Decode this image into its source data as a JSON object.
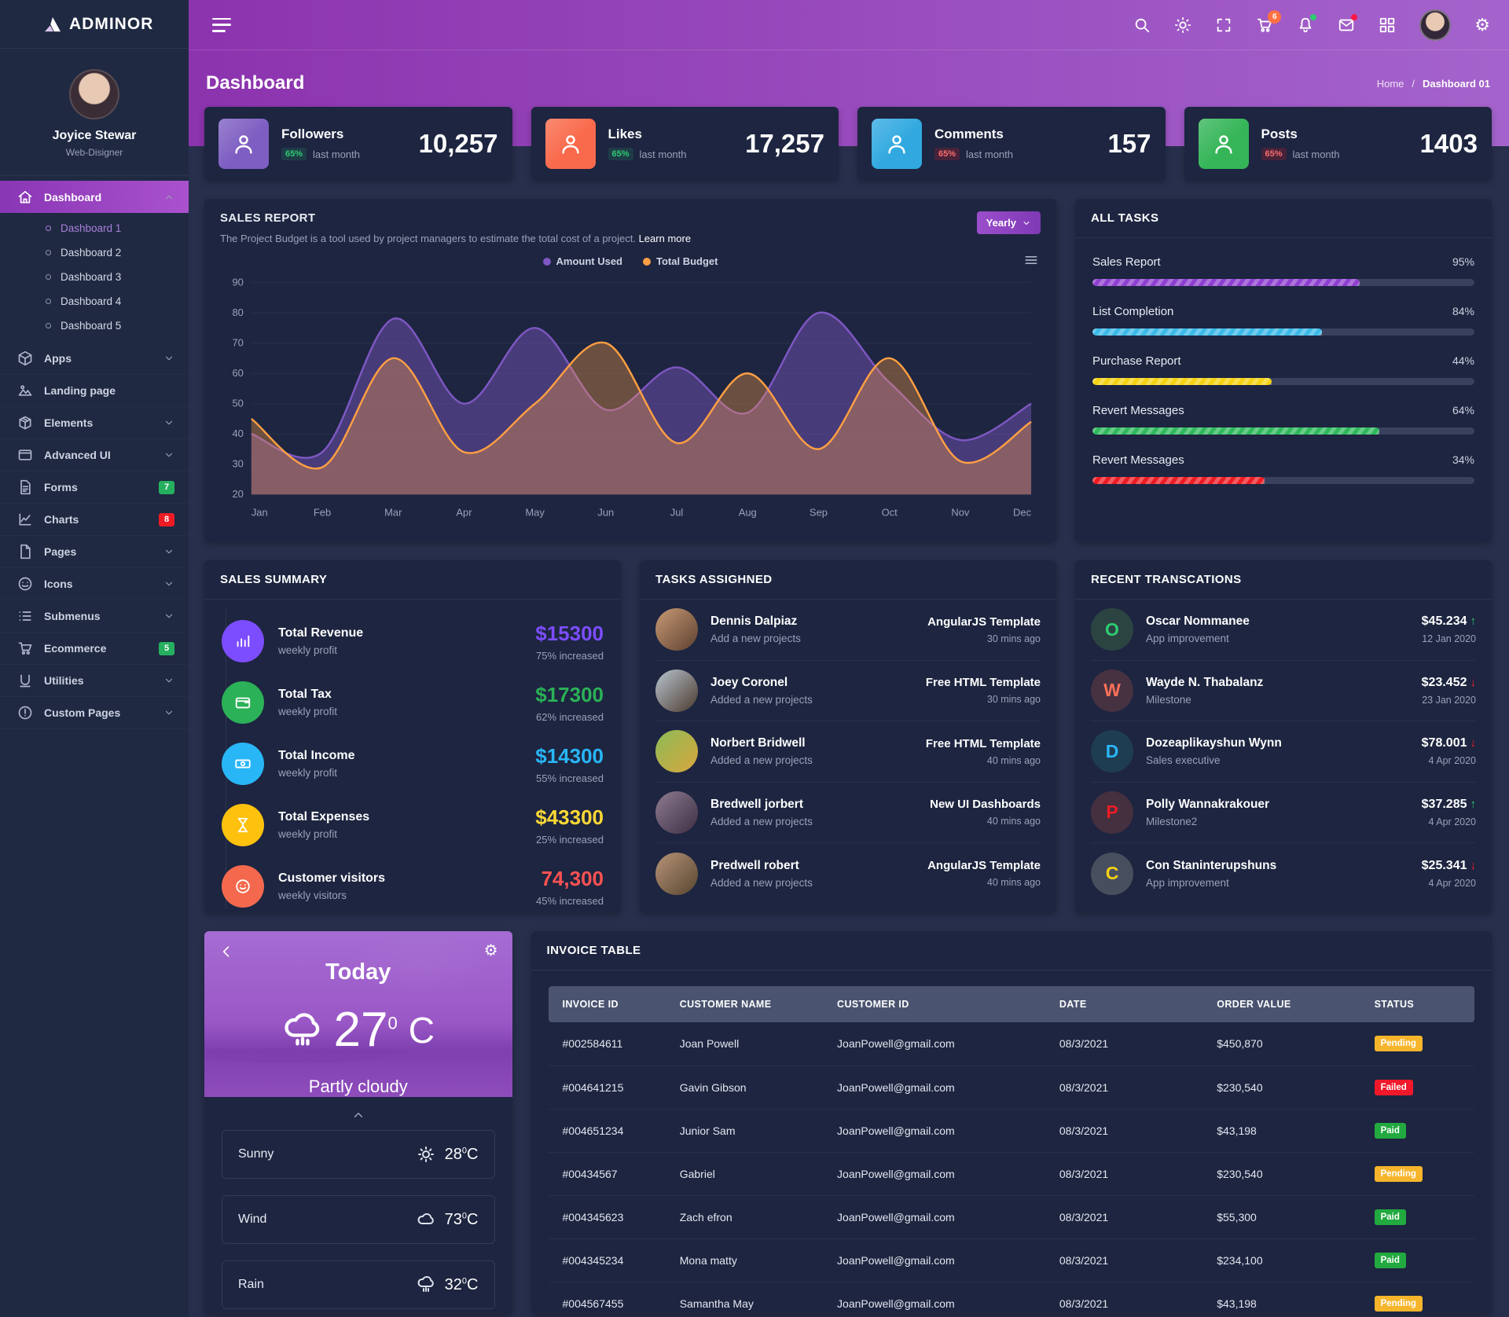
{
  "brand": {
    "name": "ADMINOR"
  },
  "topbar": {
    "icons": [
      "search-icon",
      "sun-icon",
      "fullscreen-icon",
      "cart-icon",
      "bell-icon",
      "mail-icon",
      "grid-icon",
      "user-avatar",
      "gear-icon"
    ],
    "cart_badge": "6",
    "bell_dot_color": "#2ecc71",
    "mail_dot_color": "#ff1744"
  },
  "page": {
    "title": "Dashboard"
  },
  "breadcrumb": {
    "home": "Home",
    "sep": "/",
    "current": "Dashboard 01"
  },
  "profile": {
    "name": "Joyice Stewar",
    "role": "Web-Disigner"
  },
  "sidebar": {
    "items": [
      {
        "label": "Dashboard"
      },
      {
        "label": "Apps"
      },
      {
        "label": "Landing page"
      },
      {
        "label": "Elements"
      },
      {
        "label": "Advanced UI"
      },
      {
        "label": "Forms",
        "badge": "7",
        "badge_color": "#26af5f"
      },
      {
        "label": "Charts",
        "badge": "8",
        "badge_color": "#ed1c24"
      },
      {
        "label": "Pages"
      },
      {
        "label": "Icons"
      },
      {
        "label": "Submenus"
      },
      {
        "label": "Ecommerce",
        "badge": "5",
        "badge_color": "#26af5f"
      },
      {
        "label": "Utilities"
      },
      {
        "label": "Custom Pages"
      }
    ],
    "dashboard_children": [
      {
        "label": "Dashboard 1"
      },
      {
        "label": "Dashboard 2"
      },
      {
        "label": "Dashboard 3"
      },
      {
        "label": "Dashboard 4"
      },
      {
        "label": "Dashboard 5"
      }
    ]
  },
  "stats": [
    {
      "label": "Followers",
      "percent": "65%",
      "pct_color": "#2ecc71",
      "pct_bg": "rgba(46,204,113,0.14)",
      "period": "last month",
      "value": "10,257",
      "tile_color": "#7e5ec2"
    },
    {
      "label": "Likes",
      "percent": "65%",
      "pct_color": "#2ecc71",
      "pct_bg": "rgba(46,204,113,0.14)",
      "period": "last month",
      "value": "17,257",
      "tile_color": "#f9694b"
    },
    {
      "label": "Comments",
      "percent": "65%",
      "pct_color": "#ff6b6b",
      "pct_bg": "rgba(237,28,36,0.2)",
      "period": "last month",
      "value": "157",
      "tile_color": "#31a9e0"
    },
    {
      "label": "Posts",
      "percent": "65%",
      "pct_color": "#ff6b6b",
      "pct_bg": "rgba(237,28,36,0.2)",
      "period": "last month",
      "value": "1403",
      "tile_color": "#35b558"
    }
  ],
  "sales_report": {
    "title": "SALES REPORT",
    "subtitle": "The Project Budget is a tool used by project managers to estimate the total cost of a project.",
    "link": "Learn more",
    "period": "Yearly"
  },
  "chart_data": {
    "type": "area",
    "x": [
      "Jan",
      "Feb",
      "Mar",
      "Apr",
      "May",
      "Jun",
      "Jul",
      "Aug",
      "Sep",
      "Oct",
      "Nov",
      "Dec"
    ],
    "series": [
      {
        "name": "Amount Used",
        "color": "#7e57c2",
        "values": [
          40,
          34,
          78,
          50,
          75,
          48,
          62,
          47,
          80,
          57,
          38,
          50
        ]
      },
      {
        "name": "Total Budget",
        "color": "#ff9f43",
        "values": [
          45,
          29,
          65,
          34,
          50,
          70,
          37,
          60,
          35,
          65,
          31,
          44
        ]
      }
    ],
    "ylim": [
      20,
      90
    ],
    "yticks": [
      20,
      30,
      40,
      50,
      60,
      70,
      80,
      90
    ],
    "grid": "faint-horizontal",
    "legend_position": "top-center"
  },
  "all_tasks": {
    "title": "ALL TASKS",
    "items": [
      {
        "label": "Sales Report",
        "percent": "95%",
        "color": "#8e3fd0",
        "width": "70%"
      },
      {
        "label": "List Completion",
        "percent": "84%",
        "color": "#3bb9e8",
        "width": "60%"
      },
      {
        "label": "Purchase Report",
        "percent": "44%",
        "color": "#f5d312",
        "width": "47%"
      },
      {
        "label": "Revert Messages",
        "percent": "64%",
        "color": "#2eb95c",
        "width": "75%"
      },
      {
        "label": "Revert Messages",
        "percent": "34%",
        "color": "#ed1c24",
        "width": "45%"
      }
    ]
  },
  "sales_summary": {
    "title": "SALES SUMMARY",
    "items": [
      {
        "label": "Total Revenue",
        "sub": "weekly profit",
        "value": "$15300",
        "value_color": "#7c4dff",
        "change": "75% increased",
        "icon": "bar-chart-icon",
        "circle_color": "#7c4dff"
      },
      {
        "label": "Total Tax",
        "sub": "weekly profit",
        "value": "$17300",
        "value_color": "#2bb157",
        "change": "62% increased",
        "icon": "wallet-icon",
        "circle_color": "#2bb157"
      },
      {
        "label": "Total Income",
        "sub": "weekly profit",
        "value": "$14300",
        "value_color": "#29b6f6",
        "change": "55% increased",
        "icon": "cash-icon",
        "circle_color": "#29b6f6"
      },
      {
        "label": "Total Expenses",
        "sub": "weekly profit",
        "value": "$43300",
        "value_color": "#fdd835",
        "change": "25% increased",
        "icon": "hourglass-icon",
        "circle_color": "#fdc10e"
      },
      {
        "label": "Customer visitors",
        "sub": "weekly visitors",
        "value": "74,300",
        "value_color": "#ff5252",
        "change": "45% increased",
        "icon": "smiley-icon",
        "circle_color": "#f4694e"
      }
    ]
  },
  "tasks_assigned": {
    "title": "TASKS ASSIGHNED",
    "items": [
      {
        "name": "Dennis Dalpiaz",
        "action": "Add a new projects",
        "project": "AngularJS Template",
        "time": "30 mins ago",
        "avatar": "linear-gradient(135deg,#c89a74,#5d4030)"
      },
      {
        "name": "Joey Coronel",
        "action": "Added a new projects",
        "project": "Free HTML Template",
        "time": "30 mins ago",
        "avatar": "linear-gradient(135deg,#b8c4cf,#4c3a2e)"
      },
      {
        "name": "Norbert Bridwell",
        "action": "Added a new projects",
        "project": "Free HTML Template",
        "time": "40 mins ago",
        "avatar": "linear-gradient(135deg,#8dbb58,#d8a63c)"
      },
      {
        "name": "Bredwell jorbert",
        "action": "Added a new projects",
        "project": "New UI Dashboards",
        "time": "40 mins ago",
        "avatar": "linear-gradient(135deg,#8d7b92,#3e2f42)"
      },
      {
        "name": "Predwell robert",
        "action": "Added a new projects",
        "project": "AngularJS Template",
        "time": "40 mins ago",
        "avatar": "linear-gradient(135deg,#b79478,#57452f)"
      }
    ]
  },
  "transactions": {
    "title": "RECENT TRANSCATIONS",
    "items": [
      {
        "initial": "O",
        "letter_color": "#2ecc71",
        "bg": "#2b4442",
        "name": "Oscar Nommanee",
        "role": "App improvement",
        "amount": "$45.234",
        "arrow": "up",
        "arrow_glyph": "↑",
        "arrow_color": "#2ecc71",
        "date": "12 Jan 2020"
      },
      {
        "initial": "W",
        "letter_color": "#ff7059",
        "bg": "#463241",
        "name": "Wayde N. Thabalanz",
        "role": "Milestone",
        "amount": "$23.452",
        "arrow": "down",
        "arrow_glyph": "↓",
        "arrow_color": "#ff1e2d",
        "date": "23 Jan 2020"
      },
      {
        "initial": "D",
        "letter_color": "#29b6f6",
        "bg": "#1e3d52",
        "name": "Dozeaplikayshun Wynn",
        "role": "Sales executive",
        "amount": "$78.001",
        "arrow": "down",
        "arrow_glyph": "↓",
        "arrow_color": "#ff1e2d",
        "date": "4 Apr 2020"
      },
      {
        "initial": "P",
        "letter_color": "#ed1c24",
        "bg": "#44303f",
        "name": "Polly Wannakrakouer",
        "role": "Milestone2",
        "amount": "$37.285",
        "arrow": "up",
        "arrow_glyph": "↑",
        "arrow_color": "#2ecc71",
        "date": "4 Apr 2020"
      },
      {
        "initial": "C",
        "letter_color": "#f5d312",
        "bg": "#474e5d",
        "name": "Con Staninterupshuns",
        "role": "App improvement",
        "amount": "$25.341",
        "arrow": "down",
        "arrow_glyph": "↓",
        "arrow_color": "#ff1e2d",
        "date": "4 Apr 2020"
      }
    ]
  },
  "weather": {
    "title": "Today",
    "temp": "27",
    "deg": "0",
    "unit": "C",
    "condition": "Partly cloudy",
    "rows": [
      {
        "label": "Sunny",
        "value": "28",
        "deg": "0",
        "unit": "C",
        "icon": "sun-icon"
      },
      {
        "label": "Wind",
        "value": "73",
        "deg": "0",
        "unit": "C",
        "icon": "cloud-icon"
      },
      {
        "label": "Rain",
        "value": "32",
        "deg": "0",
        "unit": "C",
        "icon": "rain-icon"
      }
    ]
  },
  "invoice": {
    "title": "INVOICE TABLE",
    "columns": [
      "INVOICE ID",
      "CUSTOMER NAME",
      "CUSTOMER ID",
      "DATE",
      "ORDER VALUE",
      "STATUS"
    ],
    "rows": [
      {
        "id": "#002584611",
        "name": "Joan Powell",
        "email": "JoanPowell@gmail.com",
        "date": "08/3/2021",
        "value": "$450,870",
        "status": "Pending",
        "status_color": "#f7b52c"
      },
      {
        "id": "#004641215",
        "name": "Gavin Gibson",
        "email": "JoanPowell@gmail.com",
        "date": "08/3/2021",
        "value": "$230,540",
        "status": "Failed",
        "status_color": "#f0182a"
      },
      {
        "id": "#004651234",
        "name": "Junior Sam",
        "email": "JoanPowell@gmail.com",
        "date": "08/3/2021",
        "value": "$43,198",
        "status": "Paid",
        "status_color": "#22a93f"
      },
      {
        "id": "#00434567",
        "name": "Gabriel",
        "email": "JoanPowell@gmail.com",
        "date": "08/3/2021",
        "value": "$230,540",
        "status": "Pending",
        "status_color": "#f7b52c"
      },
      {
        "id": "#004345623",
        "name": "Zach efron",
        "email": "JoanPowell@gmail.com",
        "date": "08/3/2021",
        "value": "$55,300",
        "status": "Paid",
        "status_color": "#22a93f"
      },
      {
        "id": "#004345234",
        "name": "Mona matty",
        "email": "JoanPowell@gmail.com",
        "date": "08/3/2021",
        "value": "$234,100",
        "status": "Paid",
        "status_color": "#22a93f"
      },
      {
        "id": "#004567455",
        "name": "Samantha May",
        "email": "JoanPowell@gmail.com",
        "date": "08/3/2021",
        "value": "$43,198",
        "status": "Pending",
        "status_color": "#f7b52c"
      }
    ]
  }
}
